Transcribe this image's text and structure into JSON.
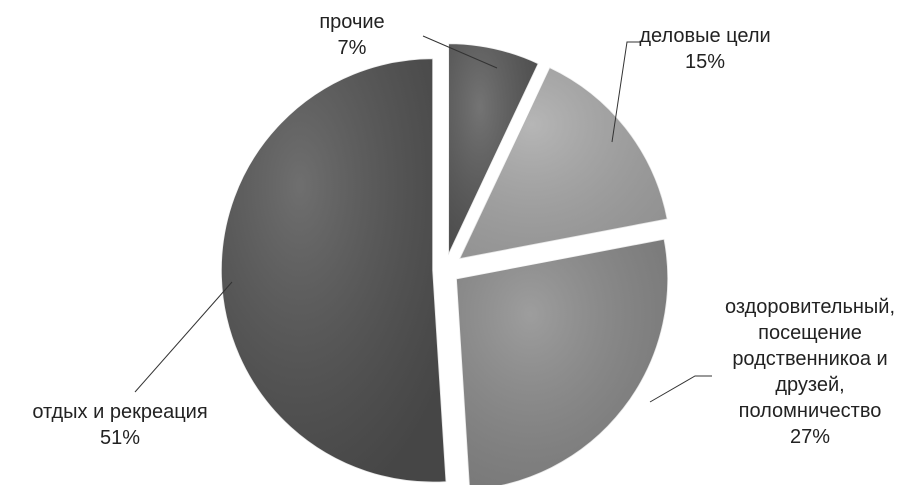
{
  "chart_data": {
    "type": "pie",
    "title": "",
    "exploded": true,
    "slices": [
      {
        "label_lines": [
          "прочие"
        ],
        "value": 7,
        "value_label": "7%",
        "color": "#555555"
      },
      {
        "label_lines": [
          "деловые цели"
        ],
        "value": 15,
        "value_label": "15%",
        "color": "#a6a6a6"
      },
      {
        "label_lines": [
          "оздоровительный,",
          "посещение",
          "родственникоа и",
          "друзей,",
          "поломничество"
        ],
        "value": 27,
        "value_label": "27%",
        "color": "#888888"
      },
      {
        "label_lines": [
          "отдых и рекреация"
        ],
        "value": 51,
        "value_label": "51%",
        "color": "#4f4f4f"
      }
    ]
  }
}
